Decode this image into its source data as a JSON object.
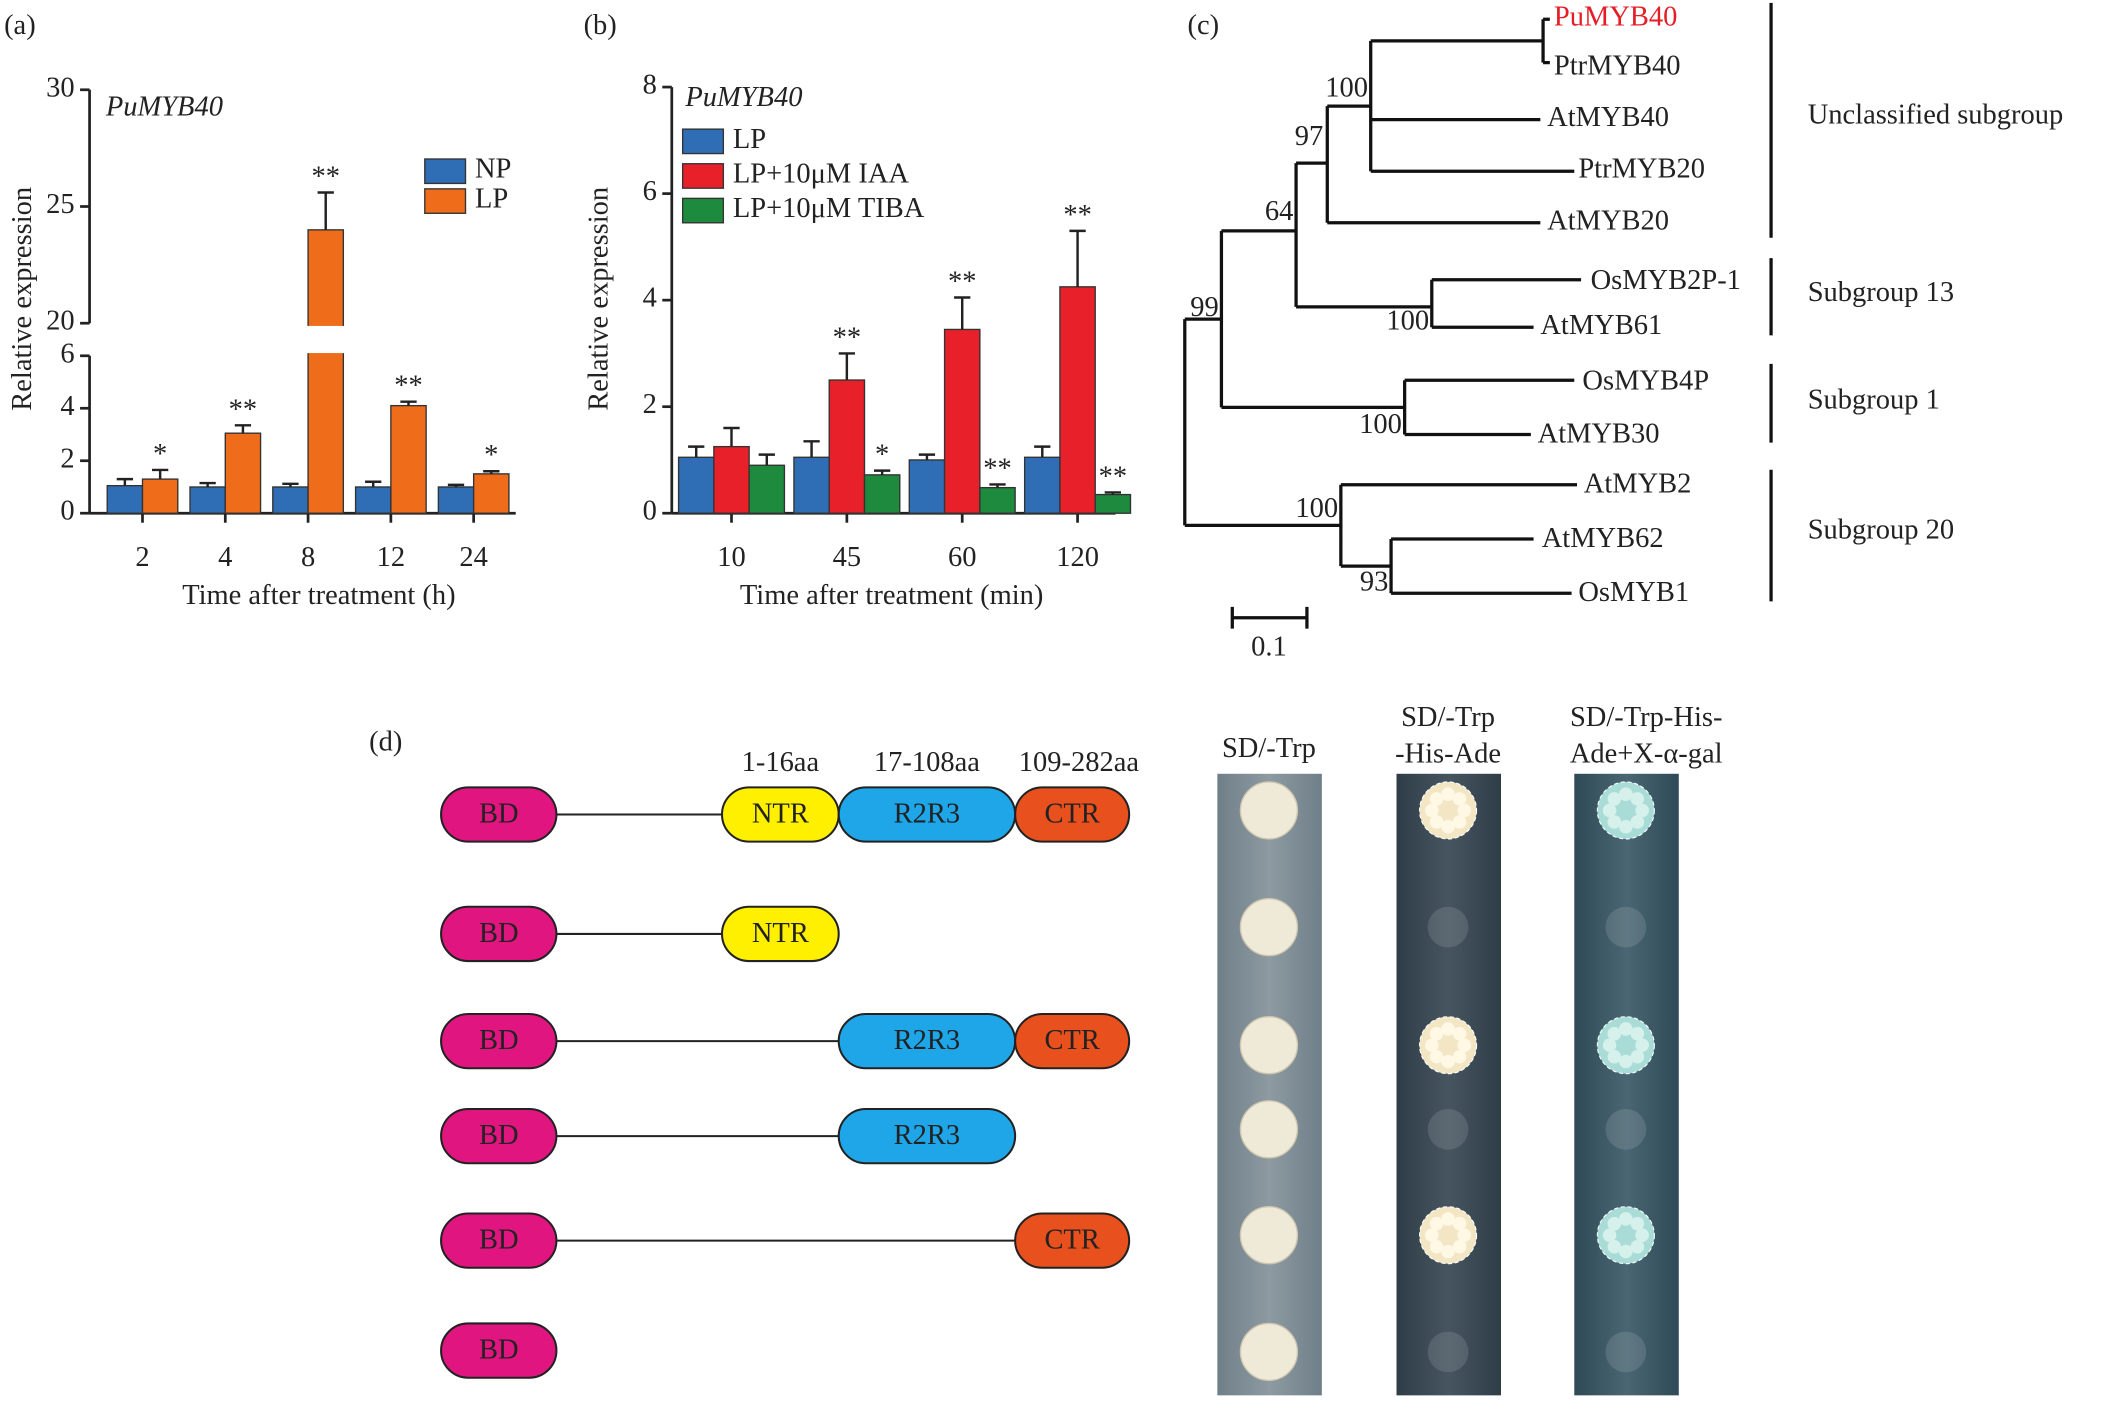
{
  "chart_data": [
    {
      "type": "bar",
      "panel": "(a)",
      "title": "PuMYB40",
      "xlabel": "Time after treatment (h)",
      "ylabel": "Relative expression",
      "categories": [
        "2",
        "4",
        "8",
        "12",
        "24"
      ],
      "ylim": [
        0,
        6
      ],
      "yticks": [
        0,
        2,
        4,
        6
      ],
      "axis_break": true,
      "ylim_upper": [
        20,
        30
      ],
      "yticks_upper": [
        20,
        25,
        30
      ],
      "series": [
        {
          "name": "NP",
          "color": "#2f6db5",
          "values": [
            1.05,
            1.0,
            1.0,
            1.0,
            1.0
          ],
          "errors": [
            0.25,
            0.15,
            0.12,
            0.2,
            0.08
          ],
          "significance": [
            null,
            null,
            null,
            null,
            null
          ]
        },
        {
          "name": "LP",
          "color": "#ef6c1a",
          "values": [
            1.3,
            3.05,
            24,
            4.1,
            1.5
          ],
          "errors": [
            0.35,
            0.3,
            1.6,
            0.15,
            0.1
          ],
          "significance": [
            "*",
            "**",
            "**",
            "**",
            "*"
          ]
        }
      ]
    },
    {
      "type": "bar",
      "panel": "(b)",
      "title": "PuMYB40",
      "xlabel": "Time after treatment (min)",
      "ylabel": "Relative expression",
      "categories": [
        "10",
        "45",
        "60",
        "120"
      ],
      "ylim": [
        0,
        8
      ],
      "yticks": [
        0,
        2,
        4,
        6,
        8
      ],
      "series": [
        {
          "name": "LP",
          "color": "#2f6db5",
          "values": [
            1.05,
            1.05,
            1.0,
            1.05
          ],
          "errors": [
            0.2,
            0.3,
            0.1,
            0.2
          ],
          "significance": [
            null,
            null,
            null,
            null
          ]
        },
        {
          "name": "LP+10μM IAA",
          "color": "#e8202a",
          "values": [
            1.25,
            2.5,
            3.45,
            4.25
          ],
          "errors": [
            0.35,
            0.5,
            0.6,
            1.05
          ],
          "significance": [
            null,
            "**",
            "**",
            "**"
          ]
        },
        {
          "name": "LP+10μM TIBA",
          "color": "#1d8a3e",
          "values": [
            0.9,
            0.72,
            0.48,
            0.35
          ],
          "errors": [
            0.2,
            0.08,
            0.06,
            0.04
          ],
          "significance": [
            null,
            "*",
            "**",
            "**"
          ]
        }
      ]
    }
  ],
  "tree": {
    "panel": "(c)",
    "leaves": [
      {
        "name": "PuMYB40",
        "color": "#e41e26"
      },
      {
        "name": "PtrMYB40",
        "color": "#222"
      },
      {
        "name": "AtMYB40",
        "color": "#222"
      },
      {
        "name": "PtrMYB20",
        "color": "#222"
      },
      {
        "name": "AtMYB20",
        "color": "#222"
      },
      {
        "name": "OsMYB2P-1",
        "color": "#222"
      },
      {
        "name": "AtMYB61",
        "color": "#222"
      },
      {
        "name": "OsMYB4P",
        "color": "#222"
      },
      {
        "name": "AtMYB30",
        "color": "#222"
      },
      {
        "name": "AtMYB2",
        "color": "#222"
      },
      {
        "name": "AtMYB62",
        "color": "#222"
      },
      {
        "name": "OsMYB1",
        "color": "#222"
      }
    ],
    "bootstrap": [
      100,
      97,
      64,
      99,
      100,
      100,
      100,
      93
    ],
    "groups": [
      "Unclassified subgroup",
      "Subgroup 13",
      "Subgroup 1",
      "Subgroup 20"
    ],
    "scale_bar": 0.1
  },
  "constructs": {
    "panel": "(d)",
    "positions": [
      "1-16aa",
      "17-108aa",
      "109-282aa"
    ],
    "colors": {
      "BD": "#e0157f",
      "NTR": "#fff000",
      "R2R3": "#1ea6e8",
      "CTR": "#e8501e"
    },
    "rows": [
      [
        "BD",
        "NTR",
        "R2R3",
        "CTR"
      ],
      [
        "BD",
        "NTR"
      ],
      [
        "BD",
        "R2R3",
        "CTR"
      ],
      [
        "BD",
        "R2R3"
      ],
      [
        "BD",
        "CTR"
      ],
      [
        "BD"
      ]
    ]
  },
  "plates": [
    {
      "header": [
        "SD/-Trp"
      ],
      "growth": [
        true,
        true,
        true,
        true,
        true,
        true
      ],
      "colony_color": "#efe9d8"
    },
    {
      "header": [
        "SD/-Trp",
        "-His-Ade"
      ],
      "growth": [
        true,
        false,
        true,
        false,
        true,
        false
      ],
      "colony_color": "#f2e6c4"
    },
    {
      "header": [
        "SD/-Trp-His-",
        "Ade+X-α-gal"
      ],
      "growth": [
        true,
        false,
        true,
        false,
        true,
        false
      ],
      "colony_color": "#a9dcd6"
    }
  ]
}
